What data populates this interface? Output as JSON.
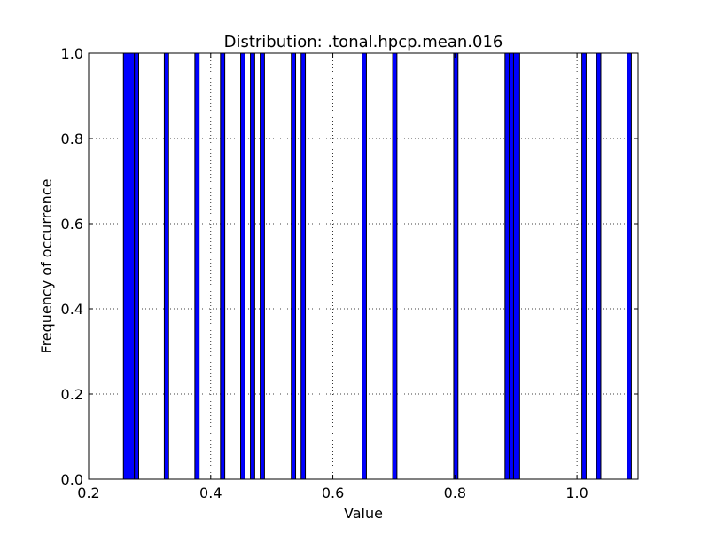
{
  "chart_data": {
    "type": "bar",
    "title": "Distribution: .tonal.hpcp.mean.016",
    "xlabel": "Value",
    "ylabel": "Frequency of occurrence",
    "xlim": [
      0.2,
      1.1
    ],
    "ylim": [
      0.0,
      1.0
    ],
    "grid": true,
    "xticks": [
      "0.2",
      "0.4",
      "0.6",
      "0.8",
      "1.0"
    ],
    "yticks": [
      "0.0",
      "0.2",
      "0.4",
      "0.6",
      "0.8",
      "1.0"
    ],
    "bar_color": "#0000ff",
    "bins": [
      {
        "x0": 0.257,
        "x1": 0.275,
        "value": 1.0
      },
      {
        "x0": 0.275,
        "x1": 0.282,
        "value": 1.0
      },
      {
        "x0": 0.324,
        "x1": 0.331,
        "value": 1.0
      },
      {
        "x0": 0.374,
        "x1": 0.381,
        "value": 1.0
      },
      {
        "x0": 0.416,
        "x1": 0.423,
        "value": 1.0
      },
      {
        "x0": 0.449,
        "x1": 0.456,
        "value": 1.0
      },
      {
        "x0": 0.465,
        "x1": 0.472,
        "value": 1.0
      },
      {
        "x0": 0.481,
        "x1": 0.488,
        "value": 1.0
      },
      {
        "x0": 0.532,
        "x1": 0.539,
        "value": 1.0
      },
      {
        "x0": 0.548,
        "x1": 0.555,
        "value": 1.0
      },
      {
        "x0": 0.648,
        "x1": 0.655,
        "value": 1.0
      },
      {
        "x0": 0.698,
        "x1": 0.705,
        "value": 1.0
      },
      {
        "x0": 0.798,
        "x1": 0.805,
        "value": 1.0
      },
      {
        "x0": 0.882,
        "x1": 0.889,
        "value": 1.0
      },
      {
        "x0": 0.889,
        "x1": 0.896,
        "value": 1.0
      },
      {
        "x0": 0.896,
        "x1": 0.906,
        "value": 1.0
      },
      {
        "x0": 1.008,
        "x1": 1.015,
        "value": 1.0
      },
      {
        "x0": 1.032,
        "x1": 1.039,
        "value": 1.0
      },
      {
        "x0": 1.082,
        "x1": 1.089,
        "value": 1.0
      }
    ]
  }
}
